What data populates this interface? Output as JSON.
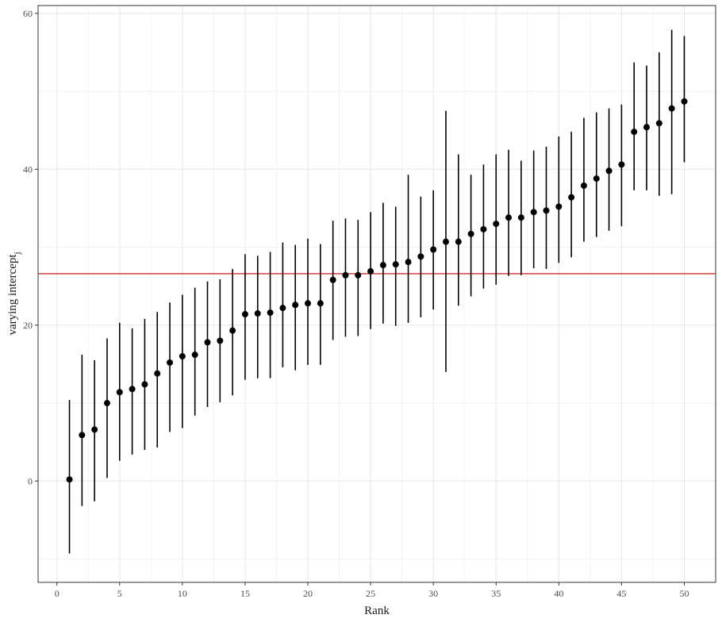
{
  "chart_data": {
    "type": "scatter",
    "style": "pointrange",
    "xlabel": "Rank",
    "ylabel_main": "varying intercept",
    "ylabel_sub": "j",
    "xlim": [
      -1.5,
      52.5
    ],
    "ylim": [
      -13,
      61
    ],
    "x_ticks": [
      0,
      5,
      10,
      15,
      20,
      25,
      30,
      35,
      40,
      45,
      50
    ],
    "y_ticks": [
      0,
      20,
      40,
      60
    ],
    "grid": true,
    "point_color": "#000000",
    "hline": {
      "y": 26.6,
      "color": "#cc0000"
    },
    "series": [
      {
        "x": [
          1,
          2,
          3,
          4,
          5,
          6,
          7,
          8,
          9,
          10,
          11,
          12,
          13,
          14,
          15,
          16,
          17,
          18,
          19,
          20,
          21,
          22,
          23,
          24,
          25,
          26,
          27,
          28,
          29,
          30,
          31,
          32,
          33,
          34,
          35,
          36,
          37,
          38,
          39,
          40,
          41,
          42,
          43,
          44,
          45,
          46,
          47,
          48,
          49,
          50
        ],
        "y": [
          0.2,
          5.9,
          6.6,
          10.0,
          11.4,
          11.8,
          12.4,
          13.8,
          15.2,
          16.0,
          16.2,
          17.8,
          18.0,
          19.3,
          21.4,
          21.5,
          21.6,
          22.2,
          22.6,
          22.8,
          22.8,
          25.8,
          26.4,
          26.4,
          26.9,
          27.7,
          27.8,
          28.1,
          28.8,
          29.7,
          30.7,
          30.7,
          31.7,
          32.3,
          33.0,
          33.8,
          33.8,
          34.5,
          34.7,
          35.2,
          36.4,
          37.9,
          38.8,
          39.8,
          40.6,
          44.8,
          45.4,
          45.9,
          47.8,
          48.7
        ],
        "lower": [
          -9.3,
          -3.2,
          -2.6,
          0.4,
          2.6,
          3.4,
          4.0,
          4.3,
          6.3,
          6.8,
          8.4,
          9.5,
          10.1,
          11.0,
          13.0,
          13.2,
          13.2,
          14.6,
          14.2,
          14.9,
          14.9,
          18.1,
          18.5,
          18.6,
          19.5,
          20.2,
          19.9,
          20.3,
          21.0,
          22.0,
          14.0,
          22.5,
          23.7,
          24.7,
          25.2,
          26.3,
          26.4,
          27.3,
          27.2,
          28.0,
          28.7,
          30.7,
          31.3,
          32.1,
          32.7,
          37.3,
          37.3,
          36.6,
          36.8,
          40.9
        ],
        "upper": [
          10.4,
          16.2,
          15.5,
          18.3,
          20.3,
          19.6,
          20.8,
          21.7,
          22.9,
          23.9,
          24.8,
          25.6,
          25.9,
          27.2,
          29.1,
          28.9,
          29.4,
          30.6,
          30.3,
          31.1,
          30.4,
          33.4,
          33.7,
          33.5,
          34.5,
          35.7,
          35.2,
          39.3,
          36.5,
          37.3,
          47.5,
          41.9,
          39.3,
          40.6,
          41.9,
          42.5,
          41.1,
          42.4,
          42.9,
          44.2,
          44.8,
          46.6,
          47.3,
          47.8,
          48.3,
          53.7,
          53.3,
          55.0,
          57.9,
          57.1
        ]
      }
    ]
  }
}
